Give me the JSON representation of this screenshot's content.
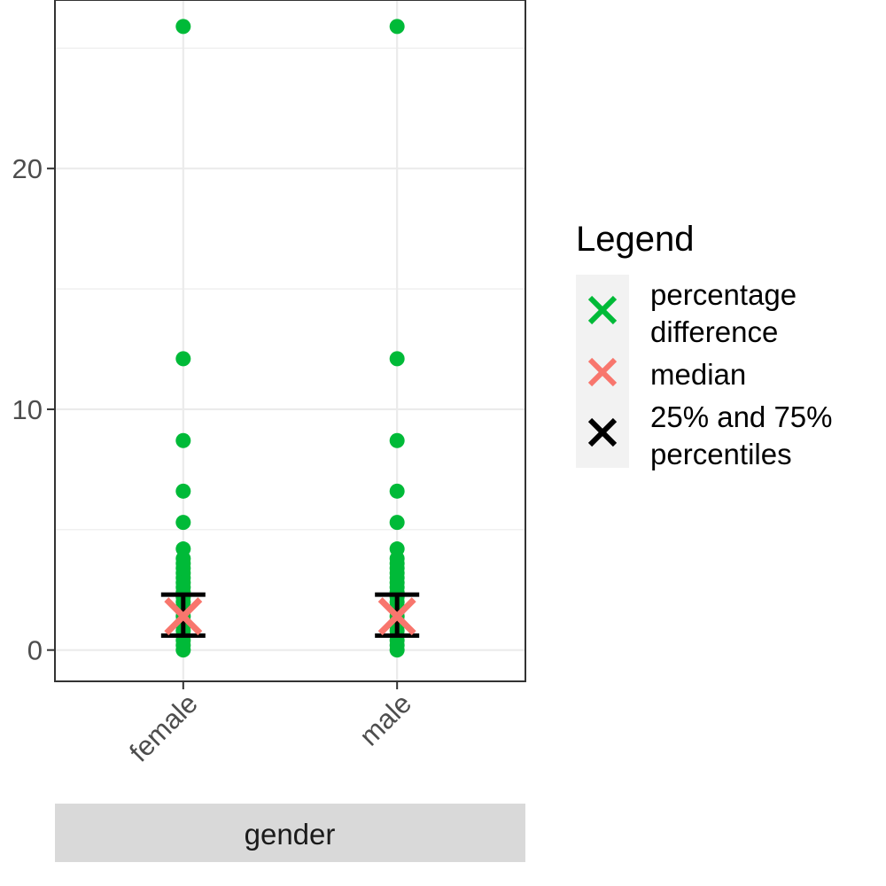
{
  "chart_data": {
    "type": "scatter",
    "categories": [
      "female",
      "male"
    ],
    "strip_label": "gender",
    "ylim": [
      -1.3,
      27.0
    ],
    "y_ticks": [
      0,
      10,
      20
    ],
    "y_tick_labels": [
      "0",
      "10",
      "20"
    ],
    "grid": true,
    "legend_position": "right",
    "legend": {
      "title": "Legend",
      "entries": [
        {
          "key": "pct",
          "lines": [
            "percentage",
            "difference"
          ],
          "color": "#00ba38"
        },
        {
          "key": "median",
          "lines": [
            "median"
          ],
          "color": "#f8766d"
        },
        {
          "key": "pctl",
          "lines": [
            "25% and 75%",
            "percentiles"
          ],
          "color": "#000000"
        }
      ]
    },
    "points": {
      "female": [
        0,
        0.2,
        0.4,
        0.6,
        0.8,
        1.0,
        1.2,
        1.4,
        1.6,
        1.8,
        2.0,
        2.2,
        2.4,
        2.6,
        2.8,
        3.0,
        3.2,
        3.4,
        3.6,
        3.8,
        4.2,
        5.3,
        6.6,
        8.7,
        12.1,
        25.9
      ],
      "male": [
        0,
        0.2,
        0.4,
        0.6,
        0.8,
        1.0,
        1.2,
        1.4,
        1.6,
        1.8,
        2.0,
        2.2,
        2.4,
        2.6,
        2.8,
        3.0,
        3.2,
        3.4,
        3.6,
        3.8,
        4.2,
        5.3,
        6.6,
        8.7,
        12.1,
        25.9
      ]
    },
    "medians": {
      "female": 1.4,
      "male": 1.4
    },
    "percentiles": {
      "female": {
        "p25": 0.6,
        "p75": 2.3
      },
      "male": {
        "p25": 0.6,
        "p75": 2.3
      }
    },
    "colors": {
      "points": "#00ba38",
      "median": "#f8766d",
      "percentiles": "#000000",
      "grid": "#ebebeb",
      "strip": "#d9d9d9",
      "legend_key_bg": "#f2f2f2"
    }
  }
}
